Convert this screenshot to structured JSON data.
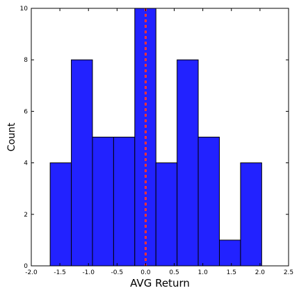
{
  "chart_data": {
    "type": "bar",
    "title": "",
    "xlabel": "AVG Return",
    "ylabel": "Count",
    "xlim": [
      -2.0,
      2.5
    ],
    "ylim": [
      0,
      10
    ],
    "x_ticks": [
      "-2.0",
      "-1.5",
      "-1.0",
      "-0.5",
      "0.0",
      "0.5",
      "1.0",
      "1.5",
      "2.0",
      "2.5"
    ],
    "y_ticks": [
      "0",
      "2",
      "4",
      "6",
      "8",
      "10"
    ],
    "bins": [
      {
        "start": -1.67,
        "end": -1.3,
        "count": 4
      },
      {
        "start": -1.3,
        "end": -0.93,
        "count": 8
      },
      {
        "start": -0.93,
        "end": -0.56,
        "count": 5
      },
      {
        "start": -0.56,
        "end": -0.19,
        "count": 5
      },
      {
        "start": -0.19,
        "end": 0.18,
        "count": 10
      },
      {
        "start": 0.18,
        "end": 0.55,
        "count": 4
      },
      {
        "start": 0.55,
        "end": 0.92,
        "count": 8
      },
      {
        "start": 0.92,
        "end": 1.29,
        "count": 5
      },
      {
        "start": 1.29,
        "end": 1.66,
        "count": 1
      },
      {
        "start": 1.66,
        "end": 2.03,
        "count": 4
      }
    ],
    "reference_line": {
      "x": 0.0,
      "color": "#ff3333",
      "style": "dashed"
    },
    "bar_color": "#2222ff",
    "grid": false,
    "legend": "none"
  }
}
